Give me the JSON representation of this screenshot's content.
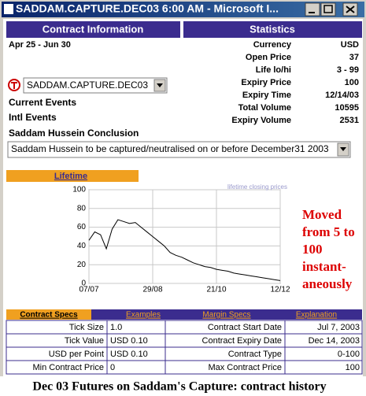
{
  "window": {
    "title": "SADDAM.CAPTURE.DEC03 6:00 AM - Microsoft I..."
  },
  "contract_info": {
    "header": "Contract Information",
    "dates": "Apr 25 - Jun 30",
    "selector": "SADDAM.CAPTURE.DEC03",
    "links": [
      "Current Events",
      "Intl Events",
      "Saddam Hussein Conclusion"
    ],
    "conclusion": "Saddam Hussein to be captured/neutralised on or before December31 2003"
  },
  "statistics": {
    "header": "Statistics",
    "rows": [
      {
        "label": "Currency",
        "value": "USD"
      },
      {
        "label": "Open Price",
        "value": "37"
      },
      {
        "label": "Life lo/hi",
        "value": "3 - 99"
      },
      {
        "label": "Expiry Price",
        "value": "100"
      },
      {
        "label": "Expiry Time",
        "value": "12/14/03"
      },
      {
        "label": "Total Volume",
        "value": "10595"
      },
      {
        "label": "Expiry Volume",
        "value": "2531"
      }
    ]
  },
  "chart_data": {
    "type": "line",
    "tab": "Lifetime",
    "annotation": [
      "Moved",
      "from 5 to",
      "100",
      "instant-",
      "aneously"
    ],
    "categories": [
      "07/07",
      null,
      null,
      null,
      null,
      null,
      null,
      null,
      null,
      null,
      null,
      "29/08",
      null,
      null,
      null,
      null,
      null,
      null,
      null,
      null,
      null,
      null,
      "21/10",
      null,
      null,
      null,
      null,
      null,
      null,
      null,
      null,
      null,
      null,
      "12/12"
    ],
    "series": [
      {
        "name": "lifetime closing prices",
        "color": "#000000",
        "values": [
          46,
          55,
          52,
          37,
          58,
          68,
          66,
          64,
          65,
          60,
          55,
          50,
          45,
          40,
          33,
          30,
          28,
          25,
          22,
          20,
          18,
          17,
          15,
          14,
          13,
          11,
          10,
          9,
          8,
          7,
          6,
          5,
          4,
          3
        ]
      }
    ],
    "ylim": [
      0,
      100
    ],
    "yticks": [
      0,
      20,
      40,
      60,
      80,
      100
    ],
    "grid": true
  },
  "tabs": [
    "Contract Specs",
    "Examples",
    "Margin Specs",
    "Explanation"
  ],
  "specs": {
    "rows": [
      [
        "Tick Size",
        "1.0",
        "Contract Start Date",
        "Jul 7, 2003"
      ],
      [
        "Tick Value",
        "USD 0.10",
        "Contract Expiry Date",
        "Dec 14, 2003"
      ],
      [
        "USD per Point",
        "USD 0.10",
        "Contract Type",
        "0-100"
      ],
      [
        "Min Contract Price",
        "0",
        "Max Contract Price",
        "100"
      ]
    ]
  },
  "caption": "Dec 03 Futures on Saddam's Capture: contract history"
}
